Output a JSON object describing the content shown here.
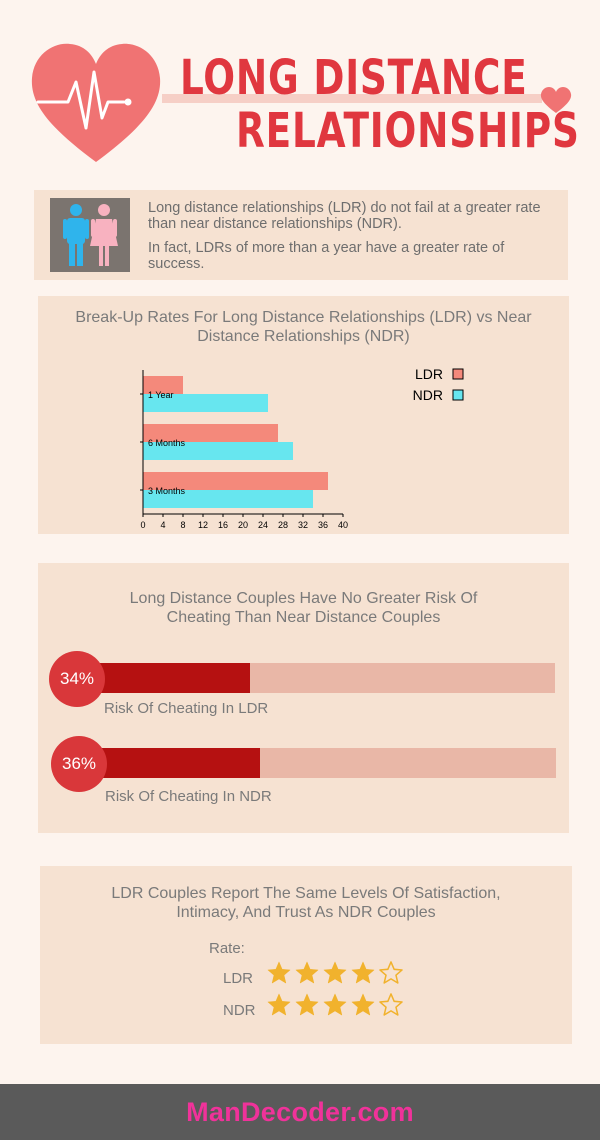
{
  "header": {
    "title_line1": "LONG DISTANCE",
    "title_line2": "RELATIONSHIPS",
    "heart_icon": "heart-ekg-icon",
    "colors": {
      "title": "#e0373f",
      "heart": "#f07373",
      "ribbon": "#f6cfc6"
    }
  },
  "intro": {
    "icon": "couple-icon",
    "paragraph1": "Long distance relationships (LDR) do not fail at a greater rate than near distance relationships (NDR).",
    "paragraph2": "In fact, LDRs of more than a year have a greater rate of success."
  },
  "chart_data": [
    {
      "type": "bar",
      "orientation": "horizontal",
      "title": "Break-Up Rates For Long Distance Relationships (LDR) vs Near Distance Relationships (NDR)",
      "categories": [
        "1 Year",
        "6 Months",
        "3 Months"
      ],
      "series": [
        {
          "name": "LDR",
          "color": "#f4897b",
          "values": [
            8,
            27,
            37
          ]
        },
        {
          "name": "NDR",
          "color": "#67e6ef",
          "values": [
            25,
            30,
            34
          ]
        }
      ],
      "xlim": [
        0,
        40
      ],
      "xticks": [
        0,
        4,
        8,
        12,
        16,
        20,
        24,
        28,
        32,
        36,
        40
      ],
      "legend": "top-right",
      "grid": false
    },
    {
      "type": "bar",
      "orientation": "horizontal",
      "title": "Long Distance Couples Have No Greater Risk Of Cheating Than Near Distance Couples",
      "items": [
        {
          "label": "34%",
          "caption": "Risk Of Cheating In LDR",
          "value": 34
        },
        {
          "label": "36%",
          "caption": "Risk Of Cheating In NDR",
          "value": 36
        }
      ],
      "colors": {
        "fill": "#b51111",
        "track": "#e9b7a7",
        "badge": "#d9373a"
      }
    }
  ],
  "ratings": {
    "title": "LDR Couples Report The Same Levels Of Satisfaction, Intimacy, And Trust As NDR Couples",
    "rate_label": "Rate:",
    "max": 5,
    "items": [
      {
        "label": "LDR",
        "stars": 4
      },
      {
        "label": "NDR",
        "stars": 4
      }
    ],
    "star_color": "#f1b22d"
  },
  "footer": {
    "brand": "ManDecoder.com",
    "color": "#f0329a"
  }
}
